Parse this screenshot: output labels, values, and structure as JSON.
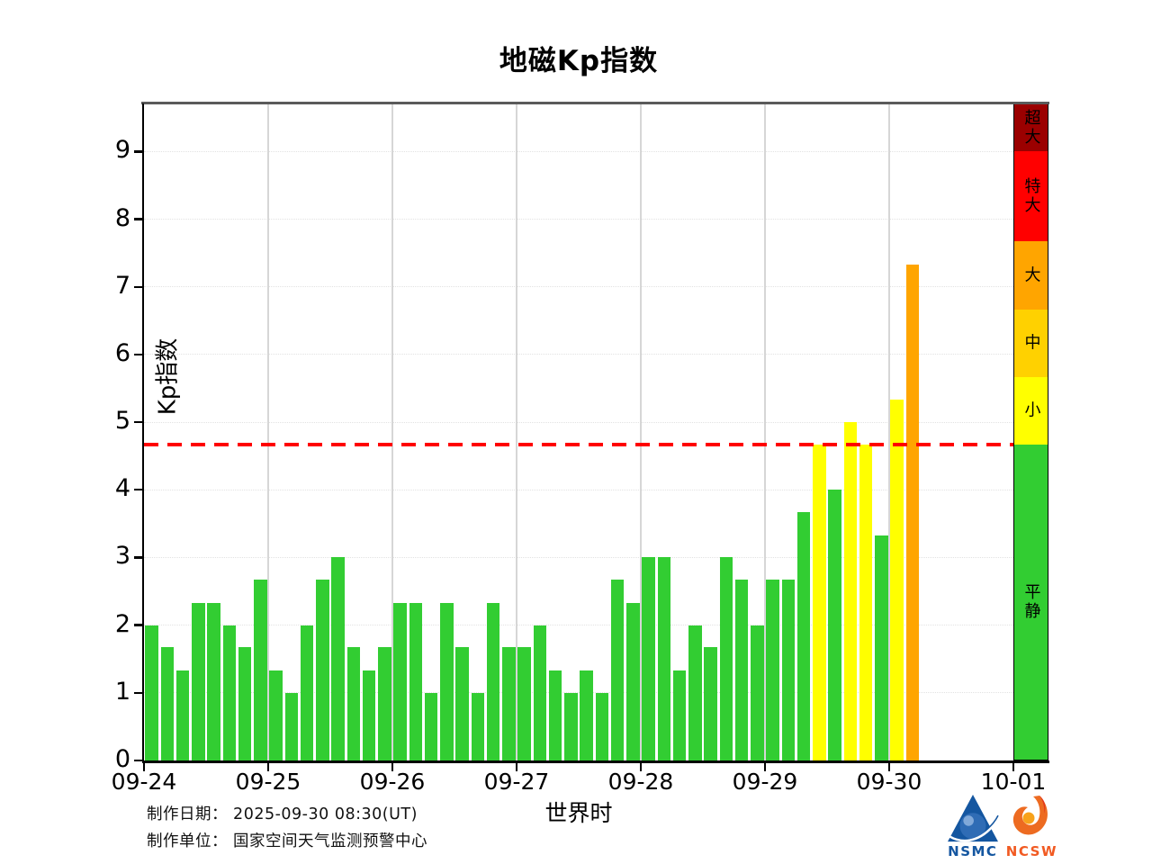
{
  "title": "地磁Kp指数",
  "axes": {
    "ylabel": "Kp指数",
    "xlabel": "世界时",
    "yticks": [
      0,
      1,
      2,
      3,
      4,
      5,
      6,
      7,
      8,
      9
    ],
    "xticks": [
      "09-24",
      "09-25",
      "09-26",
      "09-27",
      "09-28",
      "09-29",
      "09-30",
      "10-01"
    ]
  },
  "chart_data": {
    "type": "bar",
    "title": "地磁Kp指数",
    "xlabel": "世界时",
    "ylabel": "Kp指数",
    "interval_hours": 3,
    "ylim": [
      0,
      9.71
    ],
    "grid": "on",
    "days": [
      {
        "date": "09-24",
        "values": [
          2.0,
          1.67,
          1.33,
          2.33,
          2.33,
          2.0,
          1.67,
          2.67
        ]
      },
      {
        "date": "09-25",
        "values": [
          1.33,
          1.0,
          2.0,
          2.67,
          3.0,
          1.67,
          1.33,
          1.67
        ]
      },
      {
        "date": "09-26",
        "values": [
          2.33,
          2.33,
          1.0,
          2.33,
          1.67,
          1.0,
          2.33,
          1.67
        ]
      },
      {
        "date": "09-27",
        "values": [
          1.67,
          2.0,
          1.33,
          1.0,
          1.33,
          1.0,
          2.67,
          2.33
        ]
      },
      {
        "date": "09-28",
        "values": [
          3.0,
          3.0,
          1.33,
          2.0,
          1.67,
          3.0,
          2.67,
          2.0
        ]
      },
      {
        "date": "09-29",
        "values": [
          2.67,
          2.67,
          3.67,
          4.67,
          4.0,
          5.0,
          4.67,
          3.33
        ]
      },
      {
        "date": "09-30",
        "values": [
          5.33,
          7.33
        ]
      }
    ],
    "threshold": {
      "value": 4.67,
      "color": "#ff0000",
      "style": "dashed"
    },
    "bands": [
      {
        "label": "平静",
        "from": 0,
        "to": 4.67,
        "color": "#32CD32"
      },
      {
        "label": "小",
        "from": 4.67,
        "to": 5.67,
        "color": "#FFFF00"
      },
      {
        "label": "中",
        "from": 5.67,
        "to": 6.67,
        "color": "#FFD100"
      },
      {
        "label": "大",
        "from": 6.67,
        "to": 7.67,
        "color": "#FFA500"
      },
      {
        "label": "特大",
        "from": 7.67,
        "to": 9.0,
        "color": "#FF0000"
      },
      {
        "label": "超大",
        "from": 9.0,
        "to": 9.71,
        "color": "#9B0000"
      }
    ],
    "legend_position": "right-colorbar"
  },
  "footer": {
    "date_line": "制作日期： 2025-09-30 08:30(UT)",
    "org_line": "制作单位： 国家空间天气监测预警中心"
  },
  "logos": {
    "nsmc": "NSMC",
    "ncsw": "NCSW"
  },
  "colors": {
    "nsmc_blue": "#1456A0",
    "nsmc_globe": "#2F6CB5",
    "ncsw_orange": "#ED6B21",
    "ncsw_dot": "#F7A21B",
    "threshold_red": "#FF0000"
  }
}
